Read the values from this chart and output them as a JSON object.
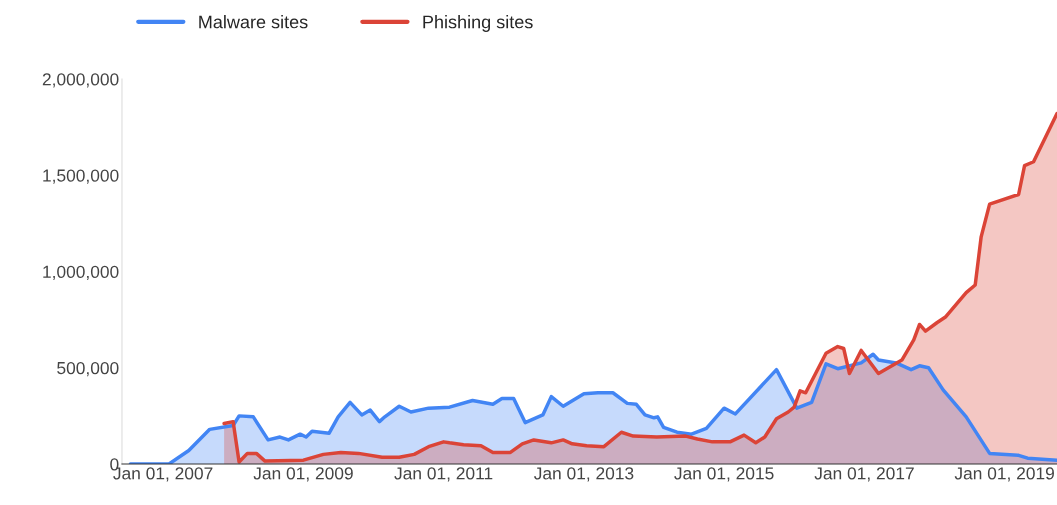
{
  "chart_data": {
    "type": "area",
    "legend": "top left",
    "grid": false,
    "xlim": [
      "2006-06-01",
      "2019-10-01"
    ],
    "xticks": [
      {
        "value": "2007-01-01",
        "label": "Jan 01, 2007"
      },
      {
        "value": "2009-01-01",
        "label": "Jan 01, 2009"
      },
      {
        "value": "2011-01-01",
        "label": "Jan 01, 2011"
      },
      {
        "value": "2013-01-01",
        "label": "Jan 01, 2013"
      },
      {
        "value": "2015-01-01",
        "label": "Jan 01, 2015"
      },
      {
        "value": "2017-01-01",
        "label": "Jan 01, 2017"
      },
      {
        "value": "2019-01-01",
        "label": "Jan 01, 2019"
      }
    ],
    "ylim": [
      0,
      2000000
    ],
    "yticks": [
      0,
      {
        "value": 500000,
        "label": "500,000"
      },
      {
        "value": 1000000,
        "label": "1,000,000"
      },
      {
        "value": 1500000,
        "label": "1,500,000"
      },
      {
        "value": 2000000,
        "label": "2,000,000"
      }
    ],
    "series": [
      {
        "name": "Malware sites",
        "color": "#4285f4",
        "x": [
          "2006-07-15",
          "2007-02-01",
          "2007-05-15",
          "2007-09-01",
          "2008-01-01",
          "2008-02-01",
          "2008-04-15",
          "2008-07-01",
          "2008-09-01",
          "2008-10-15",
          "2008-12-15",
          "2009-01-15",
          "2009-02-15",
          "2009-05-15",
          "2009-07-01",
          "2009-09-01",
          "2009-11-01",
          "2009-12-15",
          "2010-02-01",
          "2010-03-01",
          "2010-05-15",
          "2010-07-15",
          "2010-10-15",
          "2011-02-01",
          "2011-06-01",
          "2011-09-15",
          "2011-11-01",
          "2012-01-01",
          "2012-03-01",
          "2012-06-01",
          "2012-07-15",
          "2012-09-15",
          "2013-01-01",
          "2013-03-15",
          "2013-06-01",
          "2013-08-15",
          "2013-10-01",
          "2013-11-15",
          "2014-01-01",
          "2014-01-20",
          "2014-02-20",
          "2014-05-01",
          "2014-07-15",
          "2014-10-01",
          "2015-01-01",
          "2015-03-01",
          "2015-10-01",
          "2016-01-15",
          "2016-04-01",
          "2016-06-15",
          "2016-08-15",
          "2016-12-15",
          "2017-02-15",
          "2017-03-15",
          "2017-06-15",
          "2017-09-01",
          "2017-10-15",
          "2017-12-01",
          "2018-02-15",
          "2018-06-15",
          "2018-10-15",
          "2019-03-15",
          "2019-05-01",
          "2019-10-01"
        ],
        "values": [
          0,
          0,
          70000,
          180000,
          200000,
          250000,
          245000,
          125000,
          140000,
          125000,
          155000,
          140000,
          170000,
          160000,
          245000,
          320000,
          255000,
          280000,
          220000,
          245000,
          300000,
          270000,
          290000,
          295000,
          330000,
          310000,
          340000,
          340000,
          215000,
          255000,
          350000,
          300000,
          365000,
          370000,
          370000,
          315000,
          310000,
          255000,
          240000,
          245000,
          190000,
          165000,
          155000,
          185000,
          290000,
          260000,
          490000,
          290000,
          320000,
          520000,
          495000,
          525000,
          570000,
          540000,
          525000,
          490000,
          510000,
          500000,
          385000,
          245000,
          55000,
          45000,
          30000,
          20000
        ]
      },
      {
        "name": "Phishing sites",
        "color": "#db4437",
        "x": [
          "2007-11-15",
          "2008-01-01",
          "2008-02-01",
          "2008-03-15",
          "2008-05-01",
          "2008-06-15",
          "2009-01-01",
          "2009-04-15",
          "2009-07-15",
          "2009-10-15",
          "2010-02-15",
          "2010-05-15",
          "2010-08-01",
          "2010-10-15",
          "2011-01-01",
          "2011-02-01",
          "2011-04-15",
          "2011-07-15",
          "2011-09-15",
          "2011-12-15",
          "2012-02-15",
          "2012-04-15",
          "2012-07-15",
          "2012-09-15",
          "2012-11-01",
          "2013-01-15",
          "2013-04-15",
          "2013-07-15",
          "2013-09-15",
          "2014-01-15",
          "2014-06-15",
          "2014-08-15",
          "2014-11-01",
          "2015-02-01",
          "2015-04-15",
          "2015-06-15",
          "2015-08-01",
          "2015-10-01",
          "2015-12-01",
          "2016-01-01",
          "2016-02-01",
          "2016-03-01",
          "2016-06-15",
          "2016-08-15",
          "2016-09-15",
          "2016-10-15",
          "2016-12-15",
          "2017-03-15",
          "2017-07-15",
          "2017-09-15",
          "2017-10-15",
          "2017-11-15",
          "2018-01-15",
          "2018-03-01",
          "2018-06-15",
          "2018-08-01",
          "2018-09-01",
          "2018-10-15",
          "2019-03-15",
          "2019-04-15",
          "2019-06-01",
          "2019-10-01"
        ],
        "values": [
          210000,
          220000,
          10000,
          55000,
          55000,
          15000,
          20000,
          50000,
          60000,
          55000,
          35000,
          35000,
          50000,
          90000,
          115000,
          110000,
          100000,
          95000,
          60000,
          60000,
          105000,
          125000,
          110000,
          125000,
          105000,
          95000,
          90000,
          165000,
          145000,
          140000,
          145000,
          130000,
          115000,
          115000,
          150000,
          110000,
          140000,
          235000,
          270000,
          295000,
          380000,
          370000,
          575000,
          610000,
          600000,
          470000,
          590000,
          470000,
          540000,
          645000,
          725000,
          690000,
          735000,
          765000,
          890000,
          930000,
          1180000,
          1350000,
          1400000,
          1550000,
          1570000,
          1820000
        ]
      }
    ]
  }
}
